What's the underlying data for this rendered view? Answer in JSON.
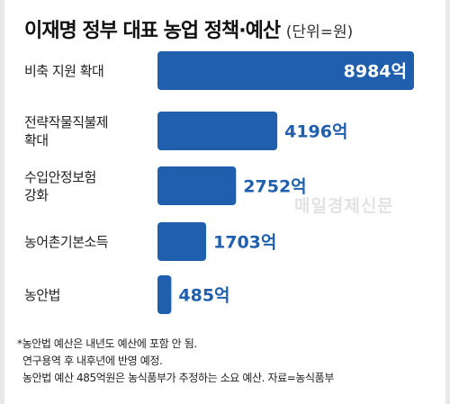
{
  "header": {
    "title_part1": "이재명 정부 대표 농업 정책",
    "title_sep": "·",
    "title_part2": "예산",
    "unit": "(단위=원)"
  },
  "watermark": "매일경제신문",
  "notes": [
    "*농안법 예산은 내년도 예산에 포함 안 됨.",
    "연구용역 후 내후년에 반영 예정.",
    "농안법 예산 485억원은 농식품부가 추정하는 소요 예산. 자료=농식품부"
  ],
  "chart_data": {
    "type": "bar",
    "orientation": "horizontal",
    "title": "이재명 정부 대표 농업 정책·예산",
    "unit": "(단위=원)",
    "categories": [
      "비축 지원 확대",
      "전략작물직불제\n확대",
      "수입안정보험\n강화",
      "농어촌기본소득",
      "농안법"
    ],
    "values": [
      8984,
      4196,
      2752,
      1703,
      485
    ],
    "value_labels": [
      "8984억",
      "4196억",
      "2752억",
      "1703억",
      "485억"
    ],
    "bar_color": "#1f5fad",
    "label_inside_color": "#ffffff",
    "label_outside_color": "#1f5fad",
    "grid": false
  }
}
